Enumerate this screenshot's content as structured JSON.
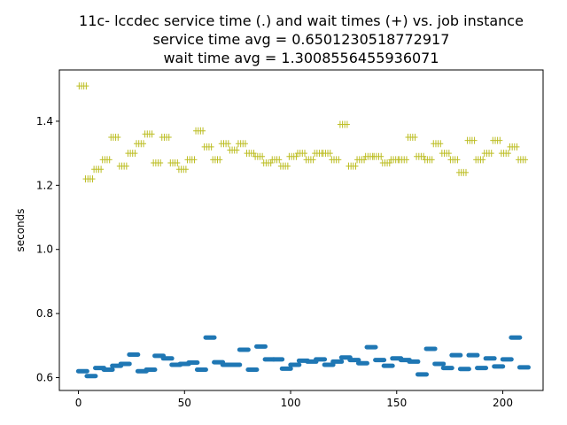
{
  "chart_data": {
    "type": "scatter",
    "title_lines": [
      "11c- lccdec service time (.) and wait times (+) vs. job instance",
      "service time avg = 0.6501230518772917",
      "wait time avg = 1.3008556455936071"
    ],
    "xlabel": "",
    "ylabel": "seconds",
    "xlim": [
      -9,
      219
    ],
    "ylim": [
      0.56,
      1.56
    ],
    "xticks": [
      0,
      50,
      100,
      150,
      200
    ],
    "yticks": [
      0.6,
      0.8,
      1.0,
      1.2,
      1.4
    ],
    "ytick_labels": [
      "0.6",
      "0.8",
      "1.0",
      "1.2",
      "1.4"
    ],
    "grid": false,
    "colors": {
      "service": "#1f77b4",
      "wait": "#bcbd22"
    },
    "series": [
      {
        "key": "wait",
        "marker": "plus",
        "points": [
          [
            2,
            1.51
          ],
          [
            5,
            1.22
          ],
          [
            9,
            1.25
          ],
          [
            13,
            1.28
          ],
          [
            17,
            1.35
          ],
          [
            21,
            1.26
          ],
          [
            25,
            1.3
          ],
          [
            29,
            1.33
          ],
          [
            33,
            1.36
          ],
          [
            37,
            1.27
          ],
          [
            41,
            1.35
          ],
          [
            45,
            1.27
          ],
          [
            49,
            1.25
          ],
          [
            53,
            1.28
          ],
          [
            57,
            1.37
          ],
          [
            61,
            1.32
          ],
          [
            65,
            1.28
          ],
          [
            69,
            1.33
          ],
          [
            73,
            1.31
          ],
          [
            77,
            1.33
          ],
          [
            81,
            1.3
          ],
          [
            85,
            1.29
          ],
          [
            89,
            1.27
          ],
          [
            93,
            1.28
          ],
          [
            97,
            1.26
          ],
          [
            101,
            1.29
          ],
          [
            105,
            1.3
          ],
          [
            109,
            1.28
          ],
          [
            113,
            1.3
          ],
          [
            117,
            1.3
          ],
          [
            121,
            1.28
          ],
          [
            125,
            1.39
          ],
          [
            129,
            1.26
          ],
          [
            133,
            1.28
          ],
          [
            137,
            1.29
          ],
          [
            141,
            1.29
          ],
          [
            145,
            1.27
          ],
          [
            149,
            1.28
          ],
          [
            153,
            1.28
          ],
          [
            157,
            1.35
          ],
          [
            161,
            1.29
          ],
          [
            165,
            1.28
          ],
          [
            169,
            1.33
          ],
          [
            173,
            1.3
          ],
          [
            177,
            1.28
          ],
          [
            181,
            1.24
          ],
          [
            185,
            1.34
          ],
          [
            189,
            1.28
          ],
          [
            193,
            1.3
          ],
          [
            197,
            1.34
          ],
          [
            201,
            1.3
          ],
          [
            205,
            1.32
          ],
          [
            209,
            1.28
          ]
        ]
      },
      {
        "key": "service",
        "marker": "dot",
        "points": [
          [
            2,
            0.62
          ],
          [
            6,
            0.605
          ],
          [
            10,
            0.63
          ],
          [
            14,
            0.625
          ],
          [
            18,
            0.637
          ],
          [
            22,
            0.643
          ],
          [
            26,
            0.672
          ],
          [
            30,
            0.62
          ],
          [
            34,
            0.625
          ],
          [
            38,
            0.668
          ],
          [
            42,
            0.66
          ],
          [
            46,
            0.64
          ],
          [
            50,
            0.643
          ],
          [
            54,
            0.647
          ],
          [
            58,
            0.625
          ],
          [
            62,
            0.725
          ],
          [
            66,
            0.648
          ],
          [
            70,
            0.64
          ],
          [
            74,
            0.64
          ],
          [
            78,
            0.687
          ],
          [
            82,
            0.625
          ],
          [
            86,
            0.697
          ],
          [
            90,
            0.657
          ],
          [
            94,
            0.657
          ],
          [
            98,
            0.628
          ],
          [
            102,
            0.64
          ],
          [
            106,
            0.653
          ],
          [
            110,
            0.65
          ],
          [
            114,
            0.657
          ],
          [
            118,
            0.64
          ],
          [
            122,
            0.65
          ],
          [
            126,
            0.663
          ],
          [
            130,
            0.655
          ],
          [
            134,
            0.645
          ],
          [
            138,
            0.695
          ],
          [
            142,
            0.655
          ],
          [
            146,
            0.637
          ],
          [
            150,
            0.66
          ],
          [
            154,
            0.655
          ],
          [
            158,
            0.65
          ],
          [
            162,
            0.61
          ],
          [
            166,
            0.69
          ],
          [
            170,
            0.643
          ],
          [
            174,
            0.63
          ],
          [
            178,
            0.67
          ],
          [
            182,
            0.627
          ],
          [
            186,
            0.67
          ],
          [
            190,
            0.63
          ],
          [
            194,
            0.66
          ],
          [
            198,
            0.635
          ],
          [
            202,
            0.657
          ],
          [
            206,
            0.725
          ],
          [
            210,
            0.632
          ]
        ]
      }
    ]
  }
}
